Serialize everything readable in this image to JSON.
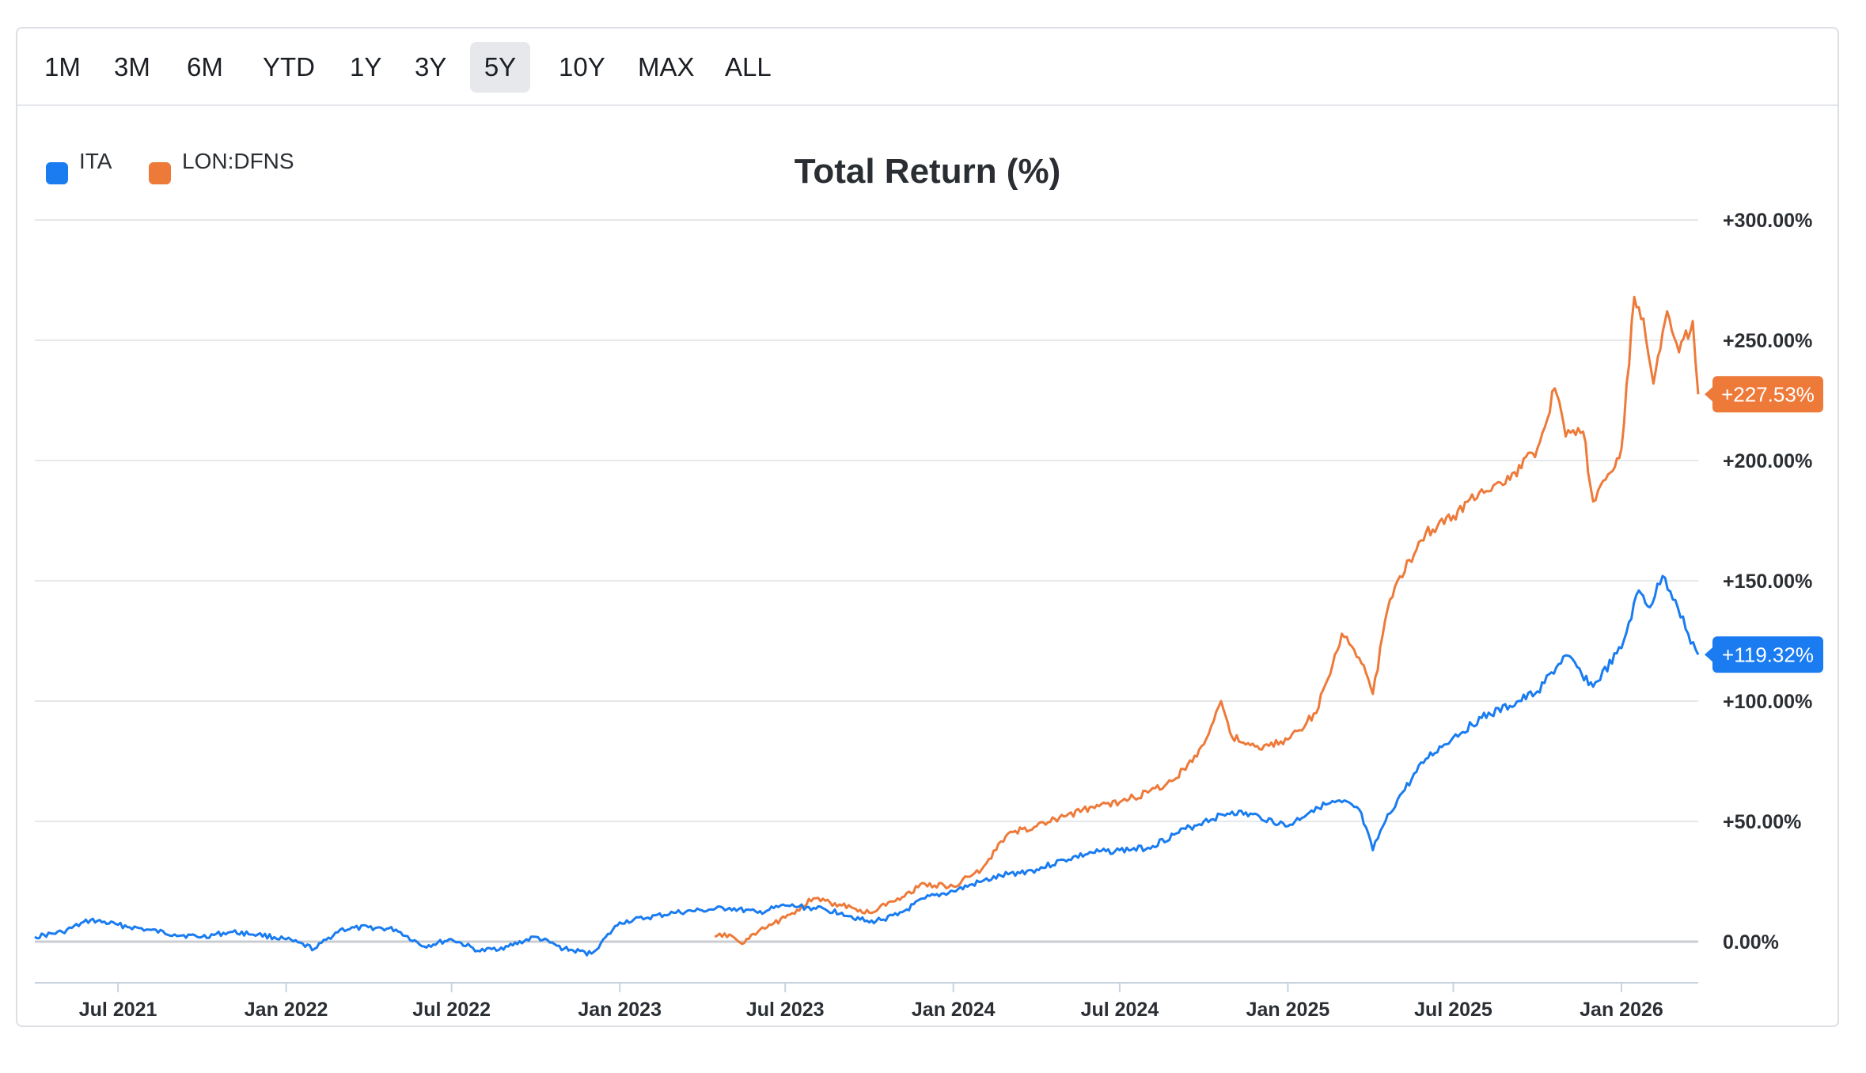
{
  "toolbar": {
    "ranges": [
      "1M",
      "3M",
      "6M",
      "YTD",
      "1Y",
      "3Y",
      "5Y",
      "10Y",
      "MAX",
      "ALL"
    ],
    "active": "5Y"
  },
  "chart_data": {
    "type": "line",
    "title": "Total Return (%)",
    "xlabel": "",
    "ylabel": "",
    "ylim": [
      -15,
      300
    ],
    "y_ticks": [
      "+300.00%",
      "+250.00%",
      "+200.00%",
      "+150.00%",
      "+100.00%",
      "+50.00%",
      "0.00%"
    ],
    "x_ticks": [
      "Jul 2021",
      "Jan 2022",
      "Jul 2022",
      "Jan 2023",
      "Jul 2023",
      "Jan 2024",
      "Jul 2024",
      "Jan 2025",
      "Jul 2025",
      "Jan 2026"
    ],
    "x_range": [
      "2021-04-01",
      "2026-03-26"
    ],
    "grid": true,
    "legend_position": "top-left",
    "series": [
      {
        "name": "ITA",
        "color": "#1a7cf0",
        "end_label": "+119.32%",
        "points": [
          [
            "2021-04-01",
            2
          ],
          [
            "2021-05-01",
            4
          ],
          [
            "2021-06-01",
            9
          ],
          [
            "2021-07-01",
            7
          ],
          [
            "2021-08-01",
            5
          ],
          [
            "2021-09-01",
            3
          ],
          [
            "2021-10-01",
            2
          ],
          [
            "2021-11-01",
            4
          ],
          [
            "2021-12-01",
            3
          ],
          [
            "2022-01-01",
            1
          ],
          [
            "2022-02-01",
            -3
          ],
          [
            "2022-03-01",
            5
          ],
          [
            "2022-04-01",
            6
          ],
          [
            "2022-05-01",
            5
          ],
          [
            "2022-06-01",
            -2
          ],
          [
            "2022-07-01",
            1
          ],
          [
            "2022-08-01",
            -4
          ],
          [
            "2022-09-01",
            -2
          ],
          [
            "2022-10-01",
            2
          ],
          [
            "2022-11-01",
            -3
          ],
          [
            "2022-12-01",
            -5
          ],
          [
            "2023-01-01",
            8
          ],
          [
            "2023-02-01",
            10
          ],
          [
            "2023-03-01",
            12
          ],
          [
            "2023-04-01",
            13
          ],
          [
            "2023-05-01",
            14
          ],
          [
            "2023-06-01",
            12
          ],
          [
            "2023-07-01",
            15
          ],
          [
            "2023-08-01",
            14
          ],
          [
            "2023-09-01",
            12
          ],
          [
            "2023-10-01",
            8
          ],
          [
            "2023-11-01",
            11
          ],
          [
            "2023-12-01",
            18
          ],
          [
            "2024-01-01",
            21
          ],
          [
            "2024-02-01",
            25
          ],
          [
            "2024-03-01",
            28
          ],
          [
            "2024-04-01",
            30
          ],
          [
            "2024-05-01",
            34
          ],
          [
            "2024-06-01",
            37
          ],
          [
            "2024-07-01",
            38
          ],
          [
            "2024-08-01",
            39
          ],
          [
            "2024-09-01",
            45
          ],
          [
            "2024-10-01",
            50
          ],
          [
            "2024-11-01",
            54
          ],
          [
            "2024-12-01",
            52
          ],
          [
            "2025-01-01",
            48
          ],
          [
            "2025-02-01",
            56
          ],
          [
            "2025-03-01",
            58
          ],
          [
            "2025-03-20",
            55
          ],
          [
            "2025-04-04",
            38
          ],
          [
            "2025-04-15",
            48
          ],
          [
            "2025-05-01",
            59
          ],
          [
            "2025-06-01",
            76
          ],
          [
            "2025-07-01",
            85
          ],
          [
            "2025-08-01",
            93
          ],
          [
            "2025-09-01",
            98
          ],
          [
            "2025-10-01",
            104
          ],
          [
            "2025-11-01",
            119
          ],
          [
            "2025-12-01",
            106
          ],
          [
            "2026-01-01",
            122
          ],
          [
            "2026-01-20",
            146
          ],
          [
            "2026-02-01",
            139
          ],
          [
            "2026-02-15",
            152
          ],
          [
            "2026-03-01",
            142
          ],
          [
            "2026-03-15",
            128
          ],
          [
            "2026-03-26",
            119.32
          ]
        ]
      },
      {
        "name": "LON:DFNS",
        "color": "#ee7a3a",
        "end_label": "+227.53%",
        "points": [
          [
            "2023-04-15",
            2
          ],
          [
            "2023-05-01",
            3
          ],
          [
            "2023-05-15",
            -1
          ],
          [
            "2023-06-01",
            4
          ],
          [
            "2023-07-01",
            10
          ],
          [
            "2023-08-01",
            18
          ],
          [
            "2023-09-01",
            15
          ],
          [
            "2023-10-01",
            12
          ],
          [
            "2023-11-01",
            18
          ],
          [
            "2023-12-01",
            24
          ],
          [
            "2024-01-01",
            23
          ],
          [
            "2024-02-01",
            30
          ],
          [
            "2024-03-01",
            45
          ],
          [
            "2024-04-01",
            48
          ],
          [
            "2024-05-01",
            52
          ],
          [
            "2024-06-01",
            56
          ],
          [
            "2024-07-01",
            58
          ],
          [
            "2024-08-01",
            62
          ],
          [
            "2024-09-01",
            68
          ],
          [
            "2024-10-01",
            82
          ],
          [
            "2024-10-20",
            100
          ],
          [
            "2024-11-01",
            85
          ],
          [
            "2024-12-01",
            80
          ],
          [
            "2025-01-01",
            84
          ],
          [
            "2025-02-01",
            95
          ],
          [
            "2025-03-01",
            128
          ],
          [
            "2025-03-20",
            118
          ],
          [
            "2025-04-04",
            103
          ],
          [
            "2025-04-20",
            138
          ],
          [
            "2025-05-01",
            150
          ],
          [
            "2025-06-01",
            170
          ],
          [
            "2025-07-01",
            177
          ],
          [
            "2025-08-01",
            188
          ],
          [
            "2025-09-01",
            192
          ],
          [
            "2025-10-01",
            205
          ],
          [
            "2025-10-20",
            230
          ],
          [
            "2025-11-01",
            210
          ],
          [
            "2025-11-20",
            212
          ],
          [
            "2025-12-01",
            183
          ],
          [
            "2025-12-20",
            195
          ],
          [
            "2026-01-01",
            205
          ],
          [
            "2026-01-15",
            268
          ],
          [
            "2026-01-25",
            259
          ],
          [
            "2026-02-05",
            232
          ],
          [
            "2026-02-20",
            262
          ],
          [
            "2026-03-05",
            245
          ],
          [
            "2026-03-20",
            258
          ],
          [
            "2026-03-26",
            227.53
          ]
        ]
      }
    ]
  }
}
